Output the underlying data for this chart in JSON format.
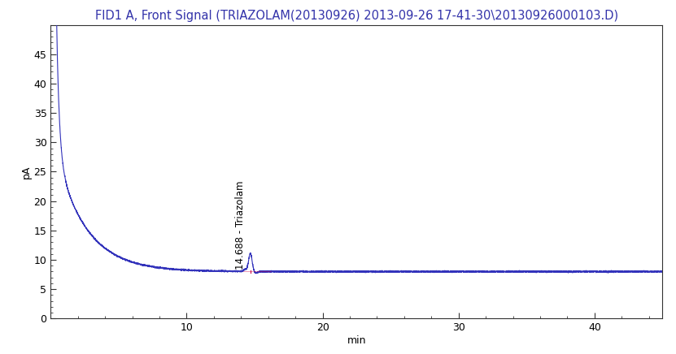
{
  "title": "FID1 A, Front Signal (TRIAZOLAM(20130926) 2013-09-26 17-41-30\\20130926000103.D)",
  "ylabel": "pA",
  "xlabel": "min",
  "xlim": [
    0,
    45
  ],
  "ylim": [
    0,
    50
  ],
  "yticks": [
    0,
    5,
    10,
    15,
    20,
    25,
    30,
    35,
    40,
    45
  ],
  "xticks": [
    10,
    20,
    30,
    40
  ],
  "line_color": "#3333bb",
  "peak_label": "14.688 - Triazolam",
  "peak_time": 14.688,
  "peak_height": 11.1,
  "baseline": 8.0,
  "title_color": "#3333aa",
  "background_color": "#ffffff",
  "title_fontsize": 10.5,
  "axis_fontsize": 9,
  "label_fontsize": 8.5,
  "spine_color": "#333333",
  "minor_tick_count": 4
}
